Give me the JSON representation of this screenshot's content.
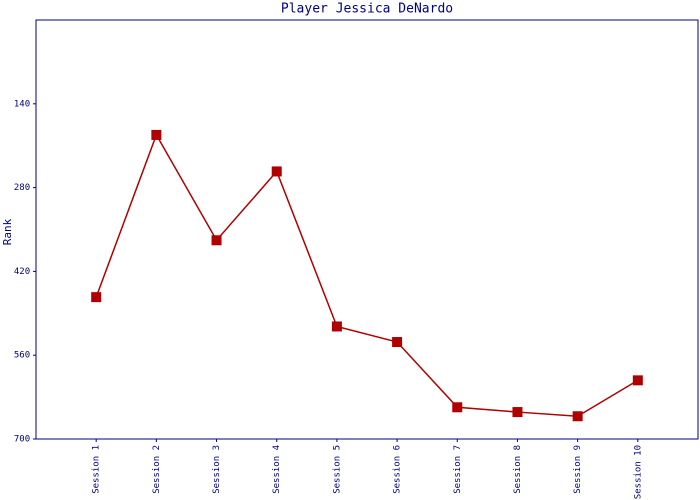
{
  "chart_data": {
    "type": "line",
    "title": "Player Jessica DeNardo",
    "y_label": "Rank",
    "categories": [
      "Session 1",
      "Session 2",
      "Session 3",
      "Session 4",
      "Session 5",
      "Session 6",
      "Session 7",
      "Session 8",
      "Session 9",
      "Session 10"
    ],
    "series": [
      {
        "name": "Rank",
        "color": "#b00000",
        "values": [
          463,
          192,
          368,
          253,
          512,
          538,
          647,
          655,
          662,
          602
        ]
      }
    ],
    "ylim": [
      700,
      0
    ],
    "yticks": [
      140,
      280,
      420,
      560,
      700
    ]
  }
}
